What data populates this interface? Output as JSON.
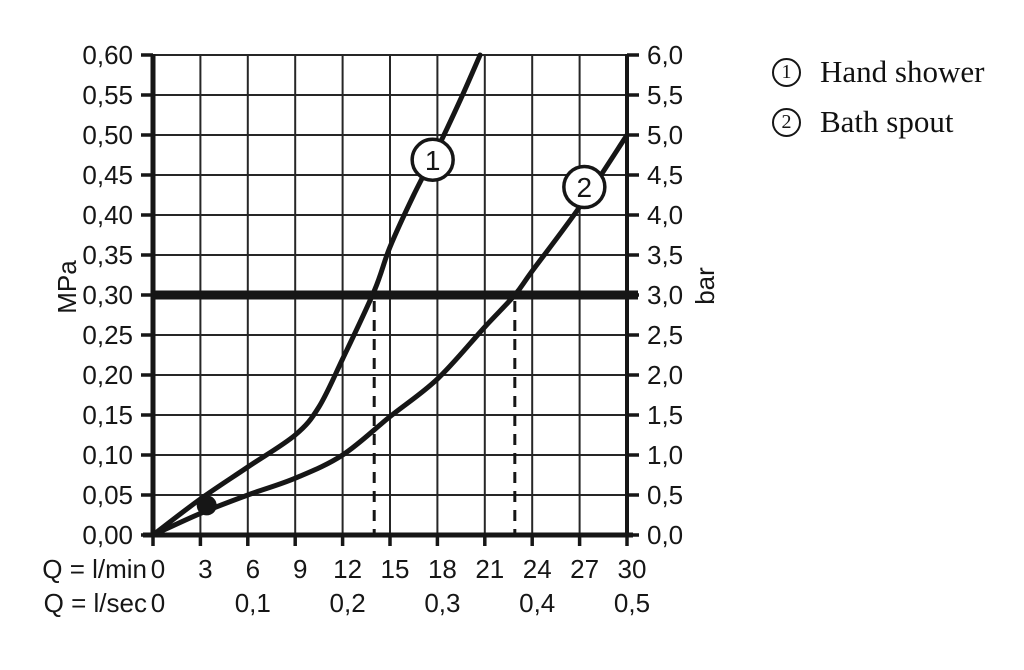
{
  "legend": {
    "items": [
      {
        "symbol": "1",
        "label": "Hand shower"
      },
      {
        "symbol": "2",
        "label": "Bath spout"
      }
    ]
  },
  "chart_data": {
    "type": "line",
    "title": "",
    "grid": true,
    "x_axis": {
      "unit_label_row1": "Q = l/min",
      "unit_label_row2": "Q = l/sec",
      "range": [
        0,
        30
      ],
      "grid_step": 3,
      "ticks_lmin": [
        "0",
        "3",
        "6",
        "9",
        "12",
        "15",
        "18",
        "21",
        "24",
        "27",
        "30"
      ],
      "ticks_lsec": [
        {
          "label": "0",
          "at": 0
        },
        {
          "label": "0,1",
          "at": 6
        },
        {
          "label": "0,2",
          "at": 12
        },
        {
          "label": "0,3",
          "at": 18
        },
        {
          "label": "0,4",
          "at": 24
        },
        {
          "label": "0,5",
          "at": 30
        }
      ]
    },
    "y_axis_left": {
      "unit_label": "MPa",
      "range": [
        0,
        0.6
      ],
      "step": 0.05,
      "tick_labels_top_to_bottom": [
        "0,60",
        "0,55",
        "0,50",
        "0,45",
        "0,40",
        "0,35",
        "0,30",
        "0,25",
        "0,20",
        "0,15",
        "0,10",
        "0,05",
        "0,00"
      ]
    },
    "y_axis_right": {
      "unit_label": "bar",
      "range": [
        0,
        6.0
      ],
      "step": 0.5,
      "tick_labels_top_to_bottom": [
        "6,0",
        "5,5",
        "5,0",
        "4,5",
        "4,0",
        "3,5",
        "3,0",
        "2,5",
        "2,0",
        "1,5",
        "1,0",
        "0,5",
        "0,0"
      ]
    },
    "reference_line": {
      "y_mpa": 0.3,
      "style": "thick"
    },
    "dashed_guides": [
      {
        "x_lmin": 14.0,
        "from_y_mpa": 0.3,
        "to_y_mpa": 0
      },
      {
        "x_lmin": 22.9,
        "from_y_mpa": 0.3,
        "to_y_mpa": 0
      }
    ],
    "marker_dot": {
      "x_lmin": 3.4,
      "y_mpa": 0.037
    },
    "series": [
      {
        "id": "1",
        "name": "Hand shower",
        "points": [
          [
            0,
            0
          ],
          [
            3,
            0.045
          ],
          [
            6,
            0.085
          ],
          [
            9,
            0.125
          ],
          [
            10.5,
            0.16
          ],
          [
            12,
            0.22
          ],
          [
            14,
            0.305
          ],
          [
            15,
            0.36
          ],
          [
            16.5,
            0.425
          ],
          [
            18,
            0.483
          ],
          [
            19.5,
            0.546
          ],
          [
            20.7,
            0.6
          ]
        ],
        "label_symbol": "1",
        "label_pos": [
          17.7,
          0.469
        ]
      },
      {
        "id": "2",
        "name": "Bath spout",
        "points": [
          [
            0,
            0
          ],
          [
            3,
            0.027
          ],
          [
            6,
            0.05
          ],
          [
            9,
            0.071
          ],
          [
            12,
            0.1
          ],
          [
            15,
            0.148
          ],
          [
            18,
            0.195
          ],
          [
            21,
            0.26
          ],
          [
            22.9,
            0.3
          ],
          [
            24,
            0.33
          ],
          [
            27,
            0.41
          ],
          [
            30,
            0.5
          ]
        ],
        "label_symbol": "2",
        "label_pos": [
          27.3,
          0.435
        ]
      }
    ]
  }
}
